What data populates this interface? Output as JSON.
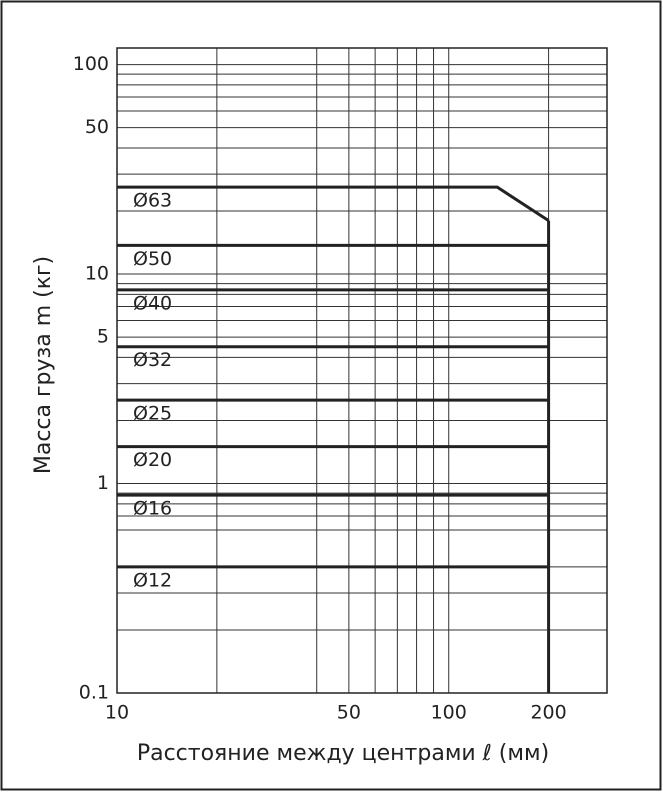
{
  "chart_data": {
    "type": "line",
    "x_label": "Расстояние между центрами ℓ (мм)",
    "y_label": "Масса груза m (кг)",
    "x_scale": "log",
    "y_scale": "log",
    "xlim": [
      10,
      300
    ],
    "xticks": [
      10,
      50,
      100,
      200
    ],
    "xgrid": [
      20,
      40,
      60,
      70,
      80,
      90,
      300
    ],
    "ylim": [
      0.1,
      120
    ],
    "yticks": [
      0.1,
      1,
      5,
      10,
      50,
      100
    ],
    "ygrid": [
      0.2,
      0.3,
      0.4,
      0.6,
      0.7,
      0.8,
      0.9,
      2,
      3,
      4,
      6,
      7,
      8,
      9,
      20,
      30,
      40,
      60,
      70,
      80,
      90
    ],
    "limit_x": 200,
    "color": "#222222",
    "series": [
      {
        "name": "Ø63",
        "x": [
          10,
          140,
          200
        ],
        "values": [
          26,
          26,
          18
        ]
      },
      {
        "name": "Ø50",
        "x": [
          10,
          200
        ],
        "values": [
          13.7,
          13.7
        ]
      },
      {
        "name": "Ø40",
        "x": [
          10,
          200
        ],
        "values": [
          8.4,
          8.4
        ]
      },
      {
        "name": "Ø32",
        "x": [
          10,
          200
        ],
        "values": [
          4.5,
          4.5
        ]
      },
      {
        "name": "Ø25",
        "x": [
          10,
          200
        ],
        "values": [
          2.5,
          2.5
        ]
      },
      {
        "name": "Ø20",
        "x": [
          10,
          200
        ],
        "values": [
          1.5,
          1.5
        ]
      },
      {
        "name": "Ø16",
        "x": [
          10,
          200
        ],
        "values": [
          0.88,
          0.88
        ]
      },
      {
        "name": "Ø12",
        "x": [
          10,
          200
        ],
        "values": [
          0.4,
          0.4
        ]
      }
    ]
  }
}
